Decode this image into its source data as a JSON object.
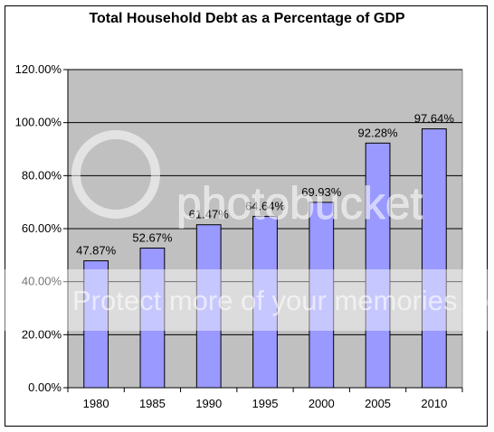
{
  "chart_data": {
    "type": "bar",
    "title": "Total Household Debt as a Percentage of GDP",
    "categories": [
      "1980",
      "1985",
      "1990",
      "1995",
      "2000",
      "2005",
      "2010"
    ],
    "values": [
      47.87,
      52.67,
      61.47,
      64.64,
      69.93,
      92.28,
      97.64
    ],
    "data_labels": [
      "47.87%",
      "52.67%",
      "61.47%",
      "64.64%",
      "69.93%",
      "92.28%",
      "97.64%"
    ],
    "y_ticks": [
      0,
      20,
      40,
      60,
      80,
      100,
      120
    ],
    "y_tick_labels": [
      "0.00%",
      "20.00%",
      "40.00%",
      "60.00%",
      "80.00%",
      "100.00%",
      "120.00%"
    ],
    "ylim": [
      0,
      120
    ],
    "xlabel": "",
    "ylabel": "",
    "grid": true,
    "legend": "none",
    "colors": {
      "bar_fill": "#9999ff",
      "bar_stroke": "#000000",
      "plot_bg": "#c0c0c0",
      "grid": "#000000"
    }
  },
  "watermark": {
    "line1": "photobucket",
    "line2": "Protect more of your memories for less!"
  }
}
